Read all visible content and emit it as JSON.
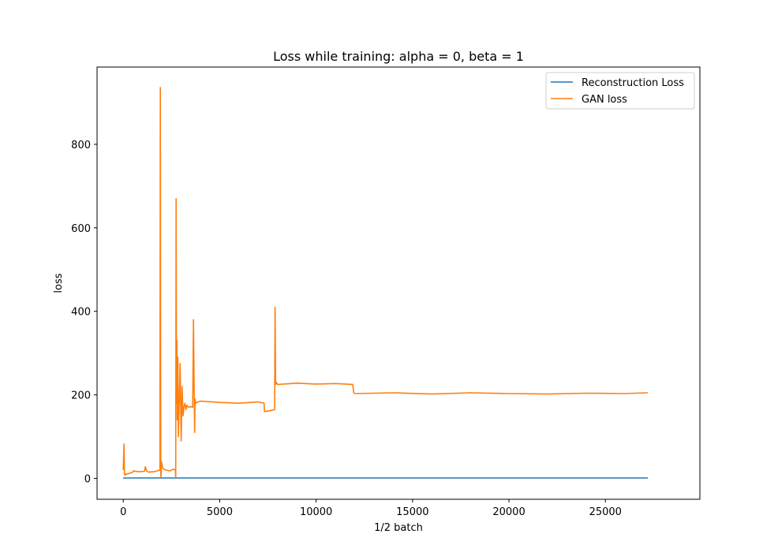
{
  "chart_data": {
    "type": "line",
    "title": "Loss while training: alpha = 0, beta = 1",
    "xlabel": "1/2 batch",
    "ylabel": "loss",
    "xlim": [
      -1360,
      29900
    ],
    "ylim": [
      -50,
      985
    ],
    "xticks": [
      0,
      5000,
      10000,
      15000,
      20000,
      25000
    ],
    "xtick_labels": [
      "0",
      "5000",
      "10000",
      "15000",
      "20000",
      "25000"
    ],
    "yticks": [
      0,
      200,
      400,
      600,
      800
    ],
    "ytick_labels": [
      "0",
      "200",
      "400",
      "600",
      "800"
    ],
    "grid": false,
    "legend_position": "top-right",
    "series": [
      {
        "name": "Reconstruction Loss",
        "color": "#1f77b4",
        "x": [
          0,
          27200
        ],
        "y": [
          1,
          1
        ]
      },
      {
        "name": "GAN loss",
        "color": "#ff7f0e",
        "x": [
          0,
          40,
          60,
          80,
          100,
          150,
          300,
          500,
          520,
          800,
          1100,
          1150,
          1200,
          1300,
          1600,
          1900,
          1920,
          1940,
          1960,
          1980,
          2000,
          2050,
          2100,
          2200,
          2400,
          2600,
          2700,
          2720,
          2740,
          2760,
          2780,
          2800,
          2830,
          2860,
          2900,
          2950,
          3000,
          3050,
          3100,
          3150,
          3200,
          3250,
          3300,
          3400,
          3500,
          3600,
          3640,
          3680,
          3700,
          3720,
          3760,
          3800,
          4000,
          5000,
          6000,
          7000,
          7300,
          7320,
          7600,
          7850,
          7870,
          7900,
          7930,
          8000,
          9000,
          10000,
          11000,
          11900,
          11950,
          12000,
          14000,
          16000,
          18000,
          20000,
          22000,
          24000,
          26000,
          27200
        ],
        "y": [
          20,
          82,
          10,
          12,
          8,
          10,
          12,
          15,
          18,
          16,
          17,
          28,
          18,
          15,
          16,
          20,
          936,
          10,
          3,
          40,
          35,
          25,
          22,
          20,
          18,
          22,
          20,
          2,
          670,
          180,
          330,
          140,
          290,
          100,
          180,
          275,
          90,
          220,
          150,
          170,
          180,
          165,
          175,
          170,
          172,
          170,
          380,
          185,
          110,
          190,
          180,
          182,
          185,
          182,
          180,
          183,
          180,
          160,
          162,
          165,
          410,
          225,
          230,
          225,
          228,
          226,
          227,
          225,
          205,
          203,
          205,
          202,
          205,
          203,
          202,
          204,
          203,
          205
        ]
      }
    ]
  }
}
